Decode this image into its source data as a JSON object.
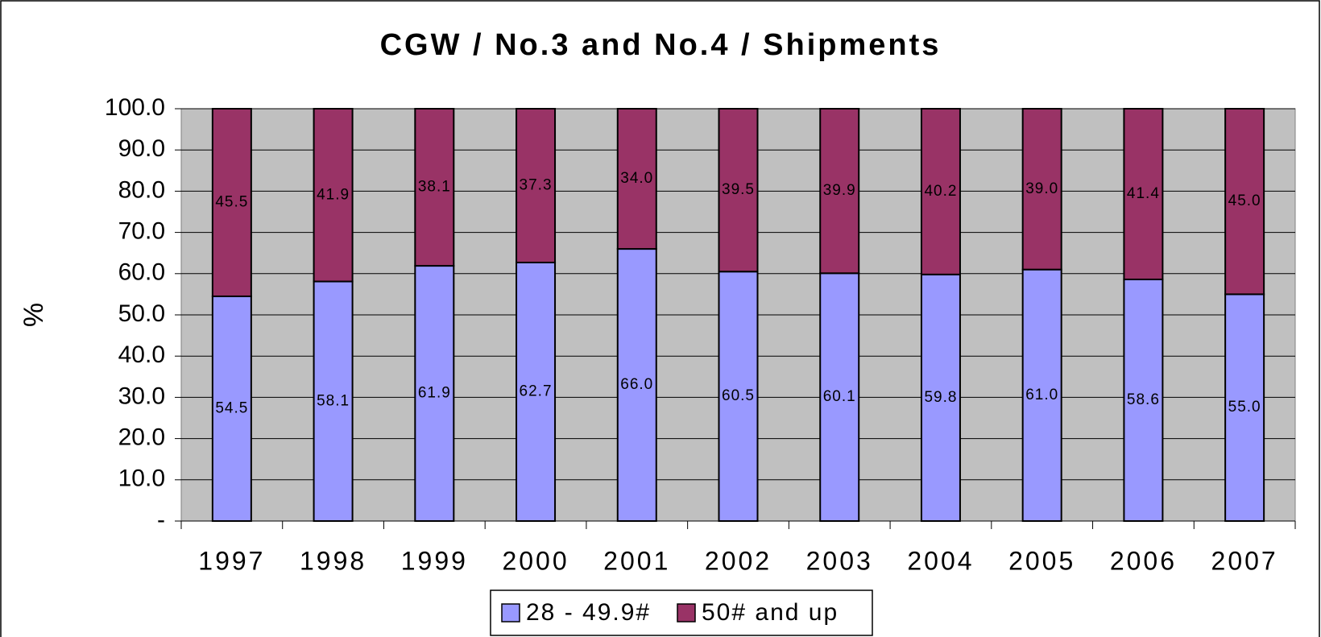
{
  "chart_data": {
    "type": "stacked_bar",
    "title": "CGW / No.3 and No.4 / Shipments",
    "y_label": "%",
    "categories": [
      "1997",
      "1998",
      "1999",
      "2000",
      "2001",
      "2002",
      "2003",
      "2004",
      "2005",
      "2006",
      "2007"
    ],
    "series": [
      {
        "name": "28 - 49.9#",
        "color": "#9999ff",
        "values": [
          54.5,
          58.1,
          61.9,
          62.7,
          66.0,
          60.5,
          60.1,
          59.8,
          61.0,
          58.6,
          55.0
        ],
        "value_labels": [
          "54.5",
          "58.1",
          "61.9",
          "62.7",
          "66.0",
          "60.5",
          "60.1",
          "59.8",
          "61.0",
          "58.6",
          "55.0"
        ]
      },
      {
        "name": "50# and up",
        "color": "#993366",
        "values": [
          45.5,
          41.9,
          38.1,
          37.3,
          34.0,
          39.5,
          39.9,
          40.2,
          39.0,
          41.4,
          45.0
        ],
        "value_labels": [
          "45.5",
          "41.9",
          "38.1",
          "37.3",
          "34.0",
          "39.5",
          "39.9",
          "40.2",
          "39.0",
          "41.4",
          "45.0"
        ]
      }
    ],
    "ylim": [
      0,
      100
    ],
    "yticks": [
      {
        "value": 0,
        "label": "-"
      },
      {
        "value": 10,
        "label": "10.0"
      },
      {
        "value": 20,
        "label": "20.0"
      },
      {
        "value": 30,
        "label": "30.0"
      },
      {
        "value": 40,
        "label": "40.0"
      },
      {
        "value": 50,
        "label": "50.0"
      },
      {
        "value": 60,
        "label": "60.0"
      },
      {
        "value": 70,
        "label": "70.0"
      },
      {
        "value": 80,
        "label": "80.0"
      },
      {
        "value": 90,
        "label": "90.0"
      },
      {
        "value": 100,
        "label": "100.0"
      }
    ],
    "grid": true,
    "plot_background": "#c0c0c0",
    "legend": "bottom"
  }
}
